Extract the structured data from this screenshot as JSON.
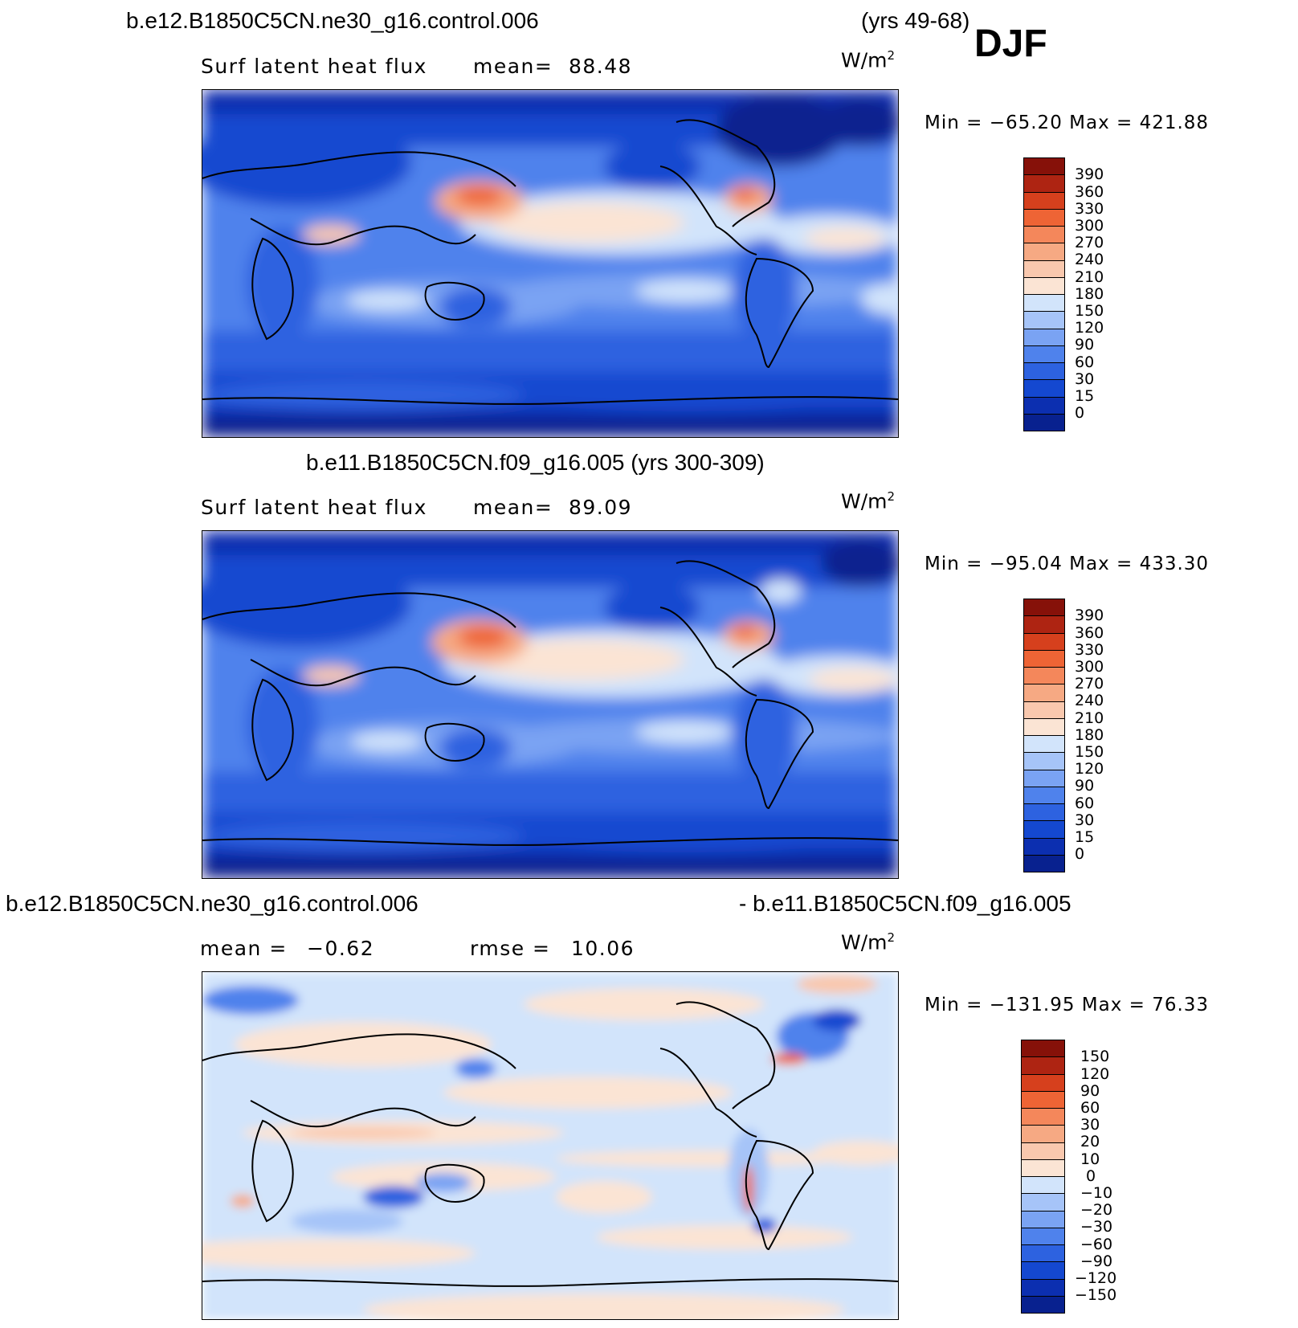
{
  "header": {
    "case_top": "b.e12.B1850C5CN.ne30_g16.control.006",
    "years_top": "(yrs 49-68)",
    "season": "DJF"
  },
  "panels": [
    {
      "id": "model",
      "variable": "Surf latent heat flux",
      "stat_label": "mean=",
      "stat_value": "88.48",
      "units_base": "W/m",
      "units_exp": "2",
      "minmax": "Min = −65.20 Max = 421.88",
      "colorbar_labels": [
        "0",
        "15",
        "30",
        "60",
        "90",
        "120",
        "150",
        "180",
        "210",
        "240",
        "270",
        "300",
        "330",
        "360",
        "390"
      ],
      "colors": [
        "#08218f",
        "#0c2fb0",
        "#1448d0",
        "#2d62e0",
        "#4f82ec",
        "#7aa3f3",
        "#a6c4f8",
        "#d2e4fb",
        "#fbe4d4",
        "#f9c8ae",
        "#f6a983",
        "#f4875b",
        "#ee6435",
        "#d6401d",
        "#ae2412",
        "#861109"
      ]
    },
    {
      "id": "control",
      "case": "b.e11.B1850C5CN.f09_g16.005 (yrs 300-309)",
      "variable": "Surf latent heat flux",
      "stat_label": "mean=",
      "stat_value": "89.09",
      "units_base": "W/m",
      "units_exp": "2",
      "minmax": "Min = −95.04 Max = 433.30",
      "colorbar_labels": [
        "0",
        "15",
        "30",
        "60",
        "90",
        "120",
        "150",
        "180",
        "210",
        "240",
        "270",
        "300",
        "330",
        "360",
        "390"
      ],
      "colors": [
        "#08218f",
        "#0c2fb0",
        "#1448d0",
        "#2d62e0",
        "#4f82ec",
        "#7aa3f3",
        "#a6c4f8",
        "#d2e4fb",
        "#fbe4d4",
        "#f9c8ae",
        "#f6a983",
        "#f4875b",
        "#ee6435",
        "#d6401d",
        "#ae2412",
        "#861109"
      ]
    },
    {
      "id": "difference",
      "case_left": "b.e12.B1850C5CN.ne30_g16.control.006",
      "case_right": "- b.e11.B1850C5CN.f09_g16.005",
      "mean_label": "mean =",
      "mean_value": "−0.62",
      "rmse_label": "rmse =",
      "rmse_value": "10.06",
      "units_base": "W/m",
      "units_exp": "2",
      "minmax": "Min = −131.95 Max =   76.33",
      "colorbar_labels": [
        "−150",
        "−120",
        "−90",
        "−60",
        "−30",
        "−20",
        "−10",
        "0",
        "10",
        "20",
        "30",
        "60",
        "90",
        "120",
        "150"
      ],
      "colors": [
        "#08218f",
        "#0c2fb0",
        "#1448d0",
        "#2d62e0",
        "#4f82ec",
        "#7aa3f3",
        "#a6c4f8",
        "#d2e4fb",
        "#fbe4d4",
        "#f9c8ae",
        "#f6a983",
        "#f4875b",
        "#ee6435",
        "#d6401d",
        "#ae2412",
        "#861109"
      ]
    }
  ]
}
